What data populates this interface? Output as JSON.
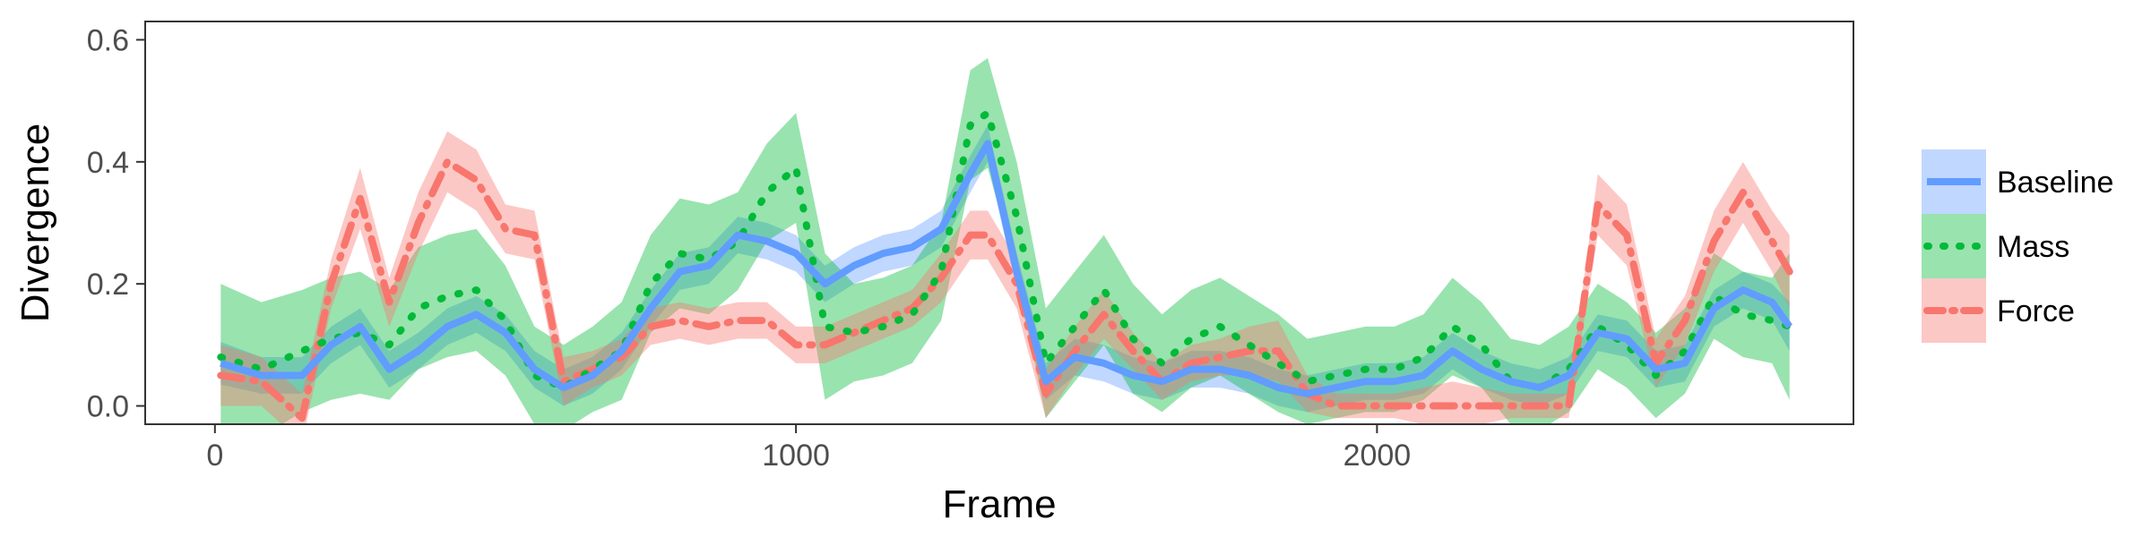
{
  "chart_data": {
    "type": "line",
    "xlabel": "Frame",
    "ylabel": "Divergence",
    "xlim": [
      -120,
      2820
    ],
    "ylim": [
      -0.03,
      0.63
    ],
    "xticks": [
      0,
      1000,
      2000
    ],
    "xtick_labels": [
      "0",
      "1000",
      "2000"
    ],
    "yticks": [
      0.0,
      0.2,
      0.4,
      0.6
    ],
    "ytick_labels": [
      "0.0",
      "0.2",
      "0.4",
      "0.6"
    ],
    "grid": false,
    "legend_position": "right",
    "x": [
      10,
      80,
      150,
      200,
      250,
      300,
      350,
      400,
      450,
      500,
      550,
      600,
      650,
      700,
      750,
      800,
      850,
      900,
      950,
      1000,
      1050,
      1100,
      1150,
      1200,
      1250,
      1300,
      1330,
      1380,
      1430,
      1480,
      1530,
      1580,
      1630,
      1680,
      1730,
      1780,
      1830,
      1880,
      1930,
      1980,
      2030,
      2080,
      2130,
      2180,
      2230,
      2280,
      2330,
      2380,
      2430,
      2480,
      2530,
      2580,
      2630,
      2680,
      2710
    ],
    "series": [
      {
        "name": "Baseline",
        "color": "#619CFF",
        "line_style": "solid",
        "values": [
          0.07,
          0.05,
          0.05,
          0.1,
          0.13,
          0.06,
          0.09,
          0.13,
          0.15,
          0.12,
          0.06,
          0.03,
          0.05,
          0.09,
          0.16,
          0.22,
          0.23,
          0.28,
          0.27,
          0.25,
          0.2,
          0.23,
          0.25,
          0.26,
          0.29,
          0.38,
          0.43,
          0.22,
          0.04,
          0.08,
          0.07,
          0.05,
          0.04,
          0.06,
          0.06,
          0.05,
          0.03,
          0.02,
          0.03,
          0.04,
          0.04,
          0.05,
          0.09,
          0.06,
          0.04,
          0.03,
          0.05,
          0.12,
          0.11,
          0.06,
          0.07,
          0.16,
          0.19,
          0.17,
          0.13
        ],
        "ci": [
          0.035,
          0.03,
          0.03,
          0.03,
          0.03,
          0.03,
          0.03,
          0.03,
          0.03,
          0.03,
          0.03,
          0.03,
          0.03,
          0.03,
          0.03,
          0.03,
          0.03,
          0.03,
          0.03,
          0.03,
          0.03,
          0.03,
          0.03,
          0.03,
          0.03,
          0.03,
          0.03,
          0.03,
          0.03,
          0.03,
          0.03,
          0.03,
          0.03,
          0.03,
          0.03,
          0.03,
          0.03,
          0.03,
          0.03,
          0.03,
          0.03,
          0.03,
          0.03,
          0.03,
          0.03,
          0.03,
          0.03,
          0.03,
          0.03,
          0.03,
          0.03,
          0.03,
          0.03,
          0.03,
          0.04
        ]
      },
      {
        "name": "Mass",
        "color": "#00BA38",
        "line_style": "dotted",
        "values": [
          0.08,
          0.06,
          0.09,
          0.11,
          0.12,
          0.1,
          0.16,
          0.18,
          0.19,
          0.14,
          0.05,
          0.03,
          0.06,
          0.09,
          0.2,
          0.25,
          0.24,
          0.27,
          0.35,
          0.39,
          0.13,
          0.12,
          0.13,
          0.15,
          0.22,
          0.46,
          0.48,
          0.31,
          0.07,
          0.13,
          0.19,
          0.11,
          0.07,
          0.11,
          0.13,
          0.1,
          0.07,
          0.04,
          0.05,
          0.06,
          0.06,
          0.08,
          0.13,
          0.1,
          0.04,
          0.03,
          0.06,
          0.13,
          0.1,
          0.05,
          0.09,
          0.18,
          0.15,
          0.14,
          0.13
        ],
        "ci": [
          0.12,
          0.11,
          0.1,
          0.1,
          0.1,
          0.09,
          0.1,
          0.1,
          0.1,
          0.09,
          0.08,
          0.07,
          0.07,
          0.08,
          0.08,
          0.09,
          0.09,
          0.08,
          0.08,
          0.09,
          0.12,
          0.08,
          0.08,
          0.08,
          0.08,
          0.09,
          0.09,
          0.09,
          0.09,
          0.09,
          0.09,
          0.09,
          0.08,
          0.08,
          0.08,
          0.08,
          0.08,
          0.07,
          0.07,
          0.07,
          0.07,
          0.07,
          0.08,
          0.07,
          0.07,
          0.07,
          0.07,
          0.07,
          0.07,
          0.07,
          0.07,
          0.07,
          0.07,
          0.07,
          0.12
        ]
      },
      {
        "name": "Force",
        "color": "#F8766D",
        "line_style": "dashdot",
        "values": [
          0.05,
          0.04,
          -0.02,
          0.2,
          0.34,
          0.17,
          0.3,
          0.4,
          0.37,
          0.29,
          0.28,
          0.04,
          0.06,
          0.08,
          0.13,
          0.14,
          0.13,
          0.14,
          0.14,
          0.1,
          0.1,
          0.12,
          0.14,
          0.16,
          0.21,
          0.28,
          0.28,
          0.2,
          0.02,
          0.09,
          0.15,
          0.09,
          0.04,
          0.07,
          0.08,
          0.09,
          0.09,
          0.02,
          0.0,
          0.0,
          0.0,
          0.0,
          0.0,
          0.0,
          0.0,
          0.0,
          0.0,
          0.33,
          0.28,
          0.07,
          0.14,
          0.27,
          0.35,
          0.27,
          0.22
        ],
        "ci": [
          0.05,
          0.04,
          0.04,
          0.04,
          0.05,
          0.04,
          0.05,
          0.05,
          0.05,
          0.04,
          0.04,
          0.04,
          0.03,
          0.03,
          0.03,
          0.03,
          0.03,
          0.03,
          0.03,
          0.03,
          0.03,
          0.03,
          0.03,
          0.03,
          0.04,
          0.04,
          0.04,
          0.04,
          0.04,
          0.04,
          0.04,
          0.03,
          0.03,
          0.03,
          0.03,
          0.04,
          0.05,
          0.03,
          0.02,
          0.02,
          0.02,
          0.03,
          0.04,
          0.03,
          0.02,
          0.02,
          0.02,
          0.05,
          0.05,
          0.04,
          0.04,
          0.05,
          0.05,
          0.05,
          0.06
        ]
      }
    ]
  }
}
